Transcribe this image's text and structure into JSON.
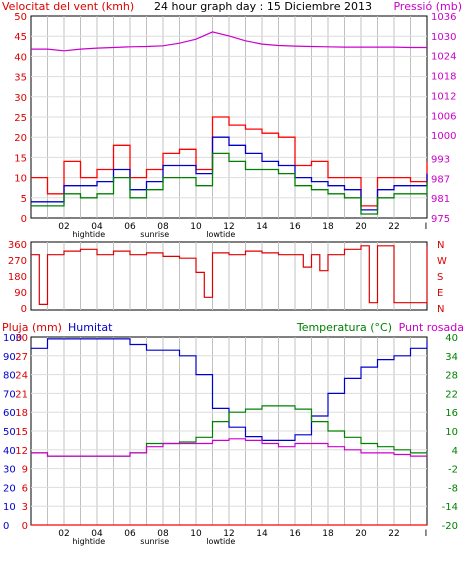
{
  "top": {
    "title_left": "Velocitat del vent (kmh)",
    "title_center": "24 hour graph day : 15 Diciembre 2013",
    "title_right": "Pressió (mb)"
  },
  "mid": {
    "ylabel_right_letters": [
      "N",
      "W",
      "S",
      "E",
      "N"
    ]
  },
  "bottom": {
    "label_rain": "Pluja (mm)",
    "label_hum": "Humitat",
    "label_temp": "Temperatura (°C)",
    "label_dew": "Punt rosada"
  },
  "x_axis": {
    "ticks": [
      "02",
      "04",
      "06",
      "08",
      "10",
      "12",
      "14",
      "16",
      "18",
      "20",
      "22",
      "I"
    ],
    "events": [
      {
        "hour": 3.5,
        "label": "hightide"
      },
      {
        "hour": 7.5,
        "label": "sunrise"
      },
      {
        "hour": 11.5,
        "label": "lowtide"
      }
    ]
  },
  "colors": {
    "wind_gust": "#ff0000",
    "wind_avg": "#0000cc",
    "wind_avg2": "#008000",
    "pressure": "#cc00cc",
    "humidity": "#0000cc",
    "temperature": "#008000",
    "dewpoint": "#cc00cc",
    "rain": "#ff0000",
    "direction": "#dd0000",
    "grid_major": "#c0c0c0"
  },
  "chart_data": [
    {
      "type": "line",
      "title": "24 hour graph day : 15 Diciembre 2013",
      "ylabel": "Velocitat del vent (kmh)",
      "y2label": "Pressió (mb)",
      "xlim": [
        0,
        24
      ],
      "ylim": [
        0,
        50
      ],
      "y_ticks": [
        0,
        5,
        10,
        15,
        20,
        25,
        30,
        35,
        40,
        45,
        50
      ],
      "y2lim": [
        975,
        1036
      ],
      "y2_ticks": [
        975,
        981,
        987,
        993,
        1000,
        1006,
        1012,
        1018,
        1024,
        1030,
        1036
      ],
      "x": [
        0,
        1,
        2,
        3,
        4,
        5,
        6,
        7,
        8,
        9,
        10,
        11,
        12,
        13,
        14,
        15,
        16,
        17,
        18,
        19,
        20,
        21,
        22,
        23,
        24
      ],
      "series": [
        {
          "role": "gust",
          "axis": "y",
          "values": [
            10,
            6,
            14,
            10,
            12,
            18,
            10,
            12,
            16,
            17,
            12,
            25,
            23,
            22,
            21,
            20,
            13,
            14,
            10,
            10,
            3,
            10,
            10,
            9,
            14
          ]
        },
        {
          "role": "average",
          "axis": "y",
          "values": [
            4,
            4,
            8,
            8,
            9,
            12,
            7,
            9,
            13,
            13,
            11,
            20,
            18,
            16,
            14,
            13,
            10,
            9,
            8,
            7,
            2,
            7,
            8,
            8,
            11
          ]
        },
        {
          "role": "average-2",
          "axis": "y",
          "values": [
            3,
            3,
            6,
            5,
            6,
            10,
            5,
            7,
            10,
            10,
            8,
            16,
            14,
            12,
            12,
            11,
            8,
            7,
            6,
            5,
            1,
            5,
            6,
            6,
            9
          ]
        },
        {
          "role": "pressure",
          "axis": "y2",
          "values": [
            1026,
            1026,
            1025.5,
            1026,
            1026.3,
            1026.5,
            1026.7,
            1026.8,
            1027,
            1027.8,
            1029,
            1031.2,
            1030,
            1028.5,
            1027.5,
            1027.1,
            1026.9,
            1026.8,
            1026.7,
            1026.6,
            1026.6,
            1026.6,
            1026.6,
            1026.5,
            1026.5
          ]
        }
      ]
    },
    {
      "type": "line",
      "ylabel": "",
      "xlim": [
        0,
        24
      ],
      "ylim": [
        0,
        360
      ],
      "y_ticks": [
        0,
        90,
        180,
        270,
        360
      ],
      "x": [
        0,
        0.5,
        1,
        2,
        3,
        4,
        5,
        6,
        7,
        8,
        9,
        10,
        10.5,
        11,
        12,
        13,
        14,
        15,
        16,
        16.5,
        17,
        17.5,
        18,
        19,
        20,
        20.5,
        21,
        22,
        23,
        24
      ],
      "series": [
        {
          "role": "direction",
          "values": [
            300,
            20,
            300,
            320,
            330,
            300,
            320,
            300,
            310,
            290,
            280,
            200,
            60,
            310,
            300,
            320,
            310,
            300,
            300,
            230,
            300,
            210,
            300,
            330,
            350,
            30,
            350,
            30,
            30,
            350
          ]
        }
      ]
    },
    {
      "type": "line",
      "ylabel": "Pluja (mm)",
      "y2label": "Temperatura (°C)",
      "xlim": [
        0,
        24
      ],
      "rain_ylim": [
        0,
        30
      ],
      "rain_ticks": [
        0,
        3,
        6,
        9,
        12,
        15,
        18,
        21,
        24,
        27,
        30
      ],
      "hum_ylim": [
        0,
        100
      ],
      "hum_ticks": [
        0,
        10,
        20,
        30,
        40,
        50,
        60,
        70,
        80,
        90,
        100
      ],
      "temp_ylim": [
        -20,
        40
      ],
      "temp_ticks": [
        -20,
        -14,
        -8,
        -2,
        4,
        10,
        16,
        22,
        28,
        34,
        40
      ],
      "x": [
        0,
        1,
        2,
        3,
        4,
        5,
        6,
        7,
        8,
        9,
        10,
        11,
        12,
        13,
        14,
        15,
        16,
        17,
        18,
        19,
        20,
        21,
        22,
        23,
        24
      ],
      "series": [
        {
          "name": "Humitat",
          "axis": "hum",
          "values": [
            94,
            99,
            99,
            99,
            99,
            99,
            96,
            93,
            93,
            90,
            80,
            62,
            52,
            47,
            45,
            45,
            48,
            58,
            70,
            78,
            84,
            88,
            90,
            94,
            98
          ]
        },
        {
          "name": "Temperatura (°C)",
          "axis": "temp",
          "values": [
            3,
            2,
            2,
            2,
            2,
            2,
            3,
            6,
            6,
            6.5,
            8,
            13,
            16,
            17,
            18,
            18,
            17,
            13,
            10,
            8,
            6,
            5,
            4,
            3,
            2.5
          ]
        },
        {
          "name": "Punt rosada",
          "axis": "temp",
          "values": [
            3,
            2,
            2,
            2,
            2,
            2,
            3,
            5,
            6,
            6,
            6,
            7,
            7.5,
            7,
            6,
            5,
            6,
            6,
            5,
            4,
            3,
            3,
            2.5,
            2,
            2
          ]
        },
        {
          "name": "Pluja (mm)",
          "axis": "rain",
          "values": [
            0,
            0,
            0,
            0,
            0,
            0,
            0,
            0,
            0,
            0,
            0,
            0,
            0,
            0,
            0,
            0,
            0,
            0,
            0,
            0,
            0,
            0,
            0,
            0,
            0
          ]
        }
      ]
    }
  ]
}
